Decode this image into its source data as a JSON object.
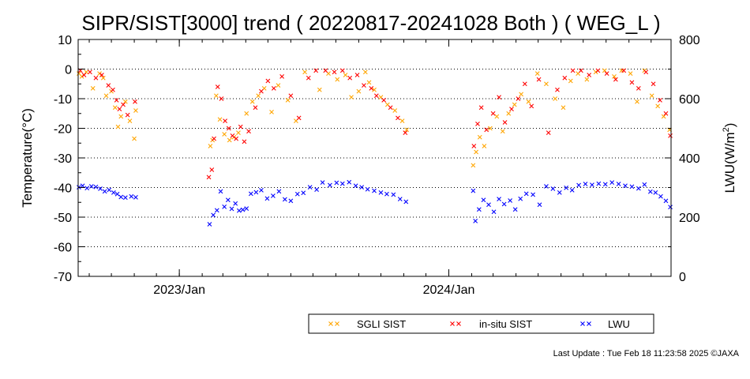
{
  "chart_data": {
    "type": "scatter",
    "title": "SIPR/SIST[3000] trend ( 20220817-20241028 Both ) ( WEG_L )",
    "date_range": [
      "2022-08-17",
      "2024-10-28"
    ],
    "ylabel_left": "Temperature(°C)",
    "ylabel_right_main": "LWU(W/m",
    "ylabel_right_sup": "2",
    "ylabel_right_close": ")",
    "ylim_left": [
      -70,
      10
    ],
    "ylim_right": [
      0,
      800
    ],
    "yticks_left": [
      "10",
      "0",
      "-10",
      "-20",
      "-30",
      "-40",
      "-50",
      "-60",
      "-70"
    ],
    "yticks_right": [
      "800",
      "600",
      "400",
      "200",
      "0"
    ],
    "xtick_labels": [
      {
        "date": "2023-01-01",
        "label": "2023/Jan"
      },
      {
        "date": "2024-01-01",
        "label": "2024/Jan"
      }
    ],
    "grid": "horizontal dotted",
    "legend_position": "bottom-right",
    "series": [
      {
        "name": "SGLI SIST",
        "color": "#ffa500",
        "marker": "x",
        "axis": "left",
        "points": [
          [
            "2022-08-18",
            -1.5
          ],
          [
            "2022-08-22",
            -2.5
          ],
          [
            "2022-08-28",
            -1.0
          ],
          [
            "2022-09-06",
            -6.5
          ],
          [
            "2022-09-15",
            -1.5
          ],
          [
            "2022-09-20",
            -3.0
          ],
          [
            "2022-09-24",
            -9.0
          ],
          [
            "2022-10-01",
            -7.5
          ],
          [
            "2022-10-06",
            -13.0
          ],
          [
            "2022-10-10",
            -19.5
          ],
          [
            "2022-10-14",
            -16.0
          ],
          [
            "2022-10-20",
            -11.0
          ],
          [
            "2022-10-26",
            -17.5
          ],
          [
            "2022-11-01",
            -23.5
          ],
          [
            "2022-11-03",
            -14.0
          ],
          [
            "2023-02-12",
            -26.0
          ],
          [
            "2023-02-15",
            -24.0
          ],
          [
            "2023-02-20",
            -9.0
          ],
          [
            "2023-02-25",
            -17.0
          ],
          [
            "2023-03-03",
            -22.0
          ],
          [
            "2023-03-10",
            -24.0
          ],
          [
            "2023-03-16",
            -23.0
          ],
          [
            "2023-03-22",
            -21.5
          ],
          [
            "2023-04-02",
            -15.0
          ],
          [
            "2023-04-10",
            -11.0
          ],
          [
            "2023-04-18",
            -9.0
          ],
          [
            "2023-04-26",
            -6.5
          ],
          [
            "2023-05-06",
            -14.5
          ],
          [
            "2023-05-15",
            -5.5
          ],
          [
            "2023-05-28",
            -10.5
          ],
          [
            "2023-06-08",
            -17.5
          ],
          [
            "2023-06-20",
            -1.0
          ],
          [
            "2023-07-10",
            -7.0
          ],
          [
            "2023-07-22",
            -1.5
          ],
          [
            "2023-08-03",
            -3.5
          ],
          [
            "2023-08-14",
            -2.0
          ],
          [
            "2023-08-22",
            -9.5
          ],
          [
            "2023-09-01",
            -7.5
          ],
          [
            "2023-09-10",
            -1.0
          ],
          [
            "2023-09-15",
            -4.5
          ],
          [
            "2023-09-22",
            -7.0
          ],
          [
            "2023-10-01",
            -9.5
          ],
          [
            "2023-10-10",
            -12.0
          ],
          [
            "2023-10-20",
            -14.0
          ],
          [
            "2023-10-30",
            -17.5
          ],
          [
            "2023-11-05",
            -20.5
          ],
          [
            "2024-02-03",
            -32.5
          ],
          [
            "2024-02-07",
            -28.0
          ],
          [
            "2024-02-12",
            -23.0
          ],
          [
            "2024-02-18",
            -26.0
          ],
          [
            "2024-02-26",
            -20.0
          ],
          [
            "2024-03-06",
            -16.0
          ],
          [
            "2024-03-14",
            -21.0
          ],
          [
            "2024-03-22",
            -15.0
          ],
          [
            "2024-03-30",
            -12.0
          ],
          [
            "2024-04-08",
            -8.5
          ],
          [
            "2024-04-18",
            -11.0
          ],
          [
            "2024-04-30",
            -1.5
          ],
          [
            "2024-05-12",
            -5.0
          ],
          [
            "2024-05-24",
            -10.0
          ],
          [
            "2024-06-04",
            -13.0
          ],
          [
            "2024-06-14",
            -4.0
          ],
          [
            "2024-06-24",
            -1.5
          ],
          [
            "2024-07-06",
            -3.5
          ],
          [
            "2024-07-18",
            -1.0
          ],
          [
            "2024-07-30",
            -0.5
          ],
          [
            "2024-08-12",
            -2.5
          ],
          [
            "2024-08-22",
            -0.5
          ],
          [
            "2024-09-03",
            -1.5
          ],
          [
            "2024-09-12",
            -11.0
          ],
          [
            "2024-09-22",
            -0.5
          ],
          [
            "2024-10-02",
            -9.0
          ],
          [
            "2024-10-10",
            -12.5
          ],
          [
            "2024-10-18",
            -16.0
          ],
          [
            "2024-10-26",
            -20.5
          ]
        ]
      },
      {
        "name": "in-situ SIST",
        "color": "#ff0000",
        "marker": "x",
        "axis": "left",
        "points": [
          [
            "2022-08-20",
            -0.5
          ],
          [
            "2022-08-25",
            -2.0
          ],
          [
            "2022-09-02",
            -1.0
          ],
          [
            "2022-09-10",
            -3.0
          ],
          [
            "2022-09-18",
            -2.0
          ],
          [
            "2022-09-27",
            -5.5
          ],
          [
            "2022-10-03",
            -7.0
          ],
          [
            "2022-10-08",
            -10.5
          ],
          [
            "2022-10-12",
            -13.5
          ],
          [
            "2022-10-17",
            -12.0
          ],
          [
            "2022-10-23",
            -15.5
          ],
          [
            "2022-11-02",
            -11.0
          ],
          [
            "2023-02-10",
            -36.5
          ],
          [
            "2023-02-14",
            -34.0
          ],
          [
            "2023-02-17",
            -23.5
          ],
          [
            "2023-02-22",
            -6.0
          ],
          [
            "2023-02-27",
            -10.0
          ],
          [
            "2023-03-04",
            -17.5
          ],
          [
            "2023-03-09",
            -20.0
          ],
          [
            "2023-03-14",
            -22.5
          ],
          [
            "2023-03-19",
            -23.5
          ],
          [
            "2023-03-25",
            -19.5
          ],
          [
            "2023-03-30",
            -24.5
          ],
          [
            "2023-04-05",
            -21.0
          ],
          [
            "2023-04-14",
            -13.0
          ],
          [
            "2023-04-22",
            -7.5
          ],
          [
            "2023-05-01",
            -4.0
          ],
          [
            "2023-05-09",
            -6.5
          ],
          [
            "2023-05-20",
            -2.5
          ],
          [
            "2023-06-01",
            -9.0
          ],
          [
            "2023-06-12",
            -16.5
          ],
          [
            "2023-06-25",
            -3.0
          ],
          [
            "2023-07-05",
            -0.5
          ],
          [
            "2023-07-18",
            -0.5
          ],
          [
            "2023-07-30",
            -1.0
          ],
          [
            "2023-08-10",
            -0.5
          ],
          [
            "2023-08-20",
            -3.0
          ],
          [
            "2023-08-30",
            -2.0
          ],
          [
            "2023-09-08",
            -5.5
          ],
          [
            "2023-09-18",
            -6.5
          ],
          [
            "2023-09-25",
            -9.0
          ],
          [
            "2023-10-05",
            -10.5
          ],
          [
            "2023-10-14",
            -13.0
          ],
          [
            "2023-10-24",
            -16.5
          ],
          [
            "2023-11-03",
            -21.5
          ],
          [
            "2024-02-04",
            -26.0
          ],
          [
            "2024-02-09",
            -18.5
          ],
          [
            "2024-02-14",
            -13.0
          ],
          [
            "2024-02-21",
            -20.5
          ],
          [
            "2024-03-01",
            -15.0
          ],
          [
            "2024-03-09",
            -9.5
          ],
          [
            "2024-03-17",
            -18.0
          ],
          [
            "2024-03-26",
            -13.5
          ],
          [
            "2024-04-04",
            -10.0
          ],
          [
            "2024-04-13",
            -5.0
          ],
          [
            "2024-04-22",
            -12.5
          ],
          [
            "2024-05-02",
            -3.5
          ],
          [
            "2024-05-15",
            -21.5
          ],
          [
            "2024-05-27",
            -7.0
          ],
          [
            "2024-06-06",
            -3.0
          ],
          [
            "2024-06-17",
            -0.5
          ],
          [
            "2024-06-28",
            -0.5
          ],
          [
            "2024-07-09",
            -2.0
          ],
          [
            "2024-07-21",
            -0.5
          ],
          [
            "2024-08-02",
            -1.5
          ],
          [
            "2024-08-14",
            -3.5
          ],
          [
            "2024-08-25",
            -0.5
          ],
          [
            "2024-09-05",
            -4.5
          ],
          [
            "2024-09-14",
            -6.5
          ],
          [
            "2024-09-24",
            -1.0
          ],
          [
            "2024-10-04",
            -5.0
          ],
          [
            "2024-10-13",
            -10.5
          ],
          [
            "2024-10-21",
            -15.0
          ],
          [
            "2024-10-27",
            -22.5
          ]
        ]
      },
      {
        "name": "LWU",
        "color": "#0000ff",
        "marker": "x",
        "axis": "right",
        "points": [
          [
            "2022-08-18",
            301
          ],
          [
            "2022-08-23",
            306
          ],
          [
            "2022-08-29",
            298
          ],
          [
            "2022-09-04",
            304
          ],
          [
            "2022-09-10",
            302
          ],
          [
            "2022-09-16",
            296
          ],
          [
            "2022-09-22",
            287
          ],
          [
            "2022-09-28",
            292
          ],
          [
            "2022-10-04",
            283
          ],
          [
            "2022-10-09",
            278
          ],
          [
            "2022-10-14",
            268
          ],
          [
            "2022-10-20",
            266
          ],
          [
            "2022-10-28",
            270
          ],
          [
            "2022-11-03",
            267
          ],
          [
            "2023-02-11",
            176
          ],
          [
            "2023-02-16",
            207
          ],
          [
            "2023-02-21",
            223
          ],
          [
            "2023-02-26",
            287
          ],
          [
            "2023-03-03",
            235
          ],
          [
            "2023-03-08",
            258
          ],
          [
            "2023-03-13",
            228
          ],
          [
            "2023-03-18",
            246
          ],
          [
            "2023-03-23",
            222
          ],
          [
            "2023-03-28",
            225
          ],
          [
            "2023-04-02",
            229
          ],
          [
            "2023-04-08",
            279
          ],
          [
            "2023-04-15",
            284
          ],
          [
            "2023-04-22",
            291
          ],
          [
            "2023-04-30",
            263
          ],
          [
            "2023-05-08",
            272
          ],
          [
            "2023-05-16",
            287
          ],
          [
            "2023-05-24",
            260
          ],
          [
            "2023-06-01",
            255
          ],
          [
            "2023-06-10",
            278
          ],
          [
            "2023-06-18",
            282
          ],
          [
            "2023-06-27",
            301
          ],
          [
            "2023-07-06",
            293
          ],
          [
            "2023-07-14",
            317
          ],
          [
            "2023-07-24",
            308
          ],
          [
            "2023-08-02",
            316
          ],
          [
            "2023-08-10",
            313
          ],
          [
            "2023-08-19",
            318
          ],
          [
            "2023-08-28",
            306
          ],
          [
            "2023-09-05",
            301
          ],
          [
            "2023-09-13",
            294
          ],
          [
            "2023-09-22",
            289
          ],
          [
            "2023-10-01",
            283
          ],
          [
            "2023-10-09",
            278
          ],
          [
            "2023-10-18",
            276
          ],
          [
            "2023-10-27",
            261
          ],
          [
            "2023-11-04",
            252
          ],
          [
            "2024-02-03",
            289
          ],
          [
            "2024-02-06",
            187
          ],
          [
            "2024-02-11",
            226
          ],
          [
            "2024-02-17",
            258
          ],
          [
            "2024-02-24",
            242
          ],
          [
            "2024-03-02",
            218
          ],
          [
            "2024-03-09",
            261
          ],
          [
            "2024-03-16",
            244
          ],
          [
            "2024-03-24",
            256
          ],
          [
            "2024-03-31",
            226
          ],
          [
            "2024-04-07",
            262
          ],
          [
            "2024-04-15",
            279
          ],
          [
            "2024-04-24",
            276
          ],
          [
            "2024-05-03",
            242
          ],
          [
            "2024-05-12",
            304
          ],
          [
            "2024-05-21",
            296
          ],
          [
            "2024-05-30",
            283
          ],
          [
            "2024-06-08",
            299
          ],
          [
            "2024-06-16",
            291
          ],
          [
            "2024-06-25",
            308
          ],
          [
            "2024-07-04",
            312
          ],
          [
            "2024-07-13",
            309
          ],
          [
            "2024-07-22",
            313
          ],
          [
            "2024-07-31",
            311
          ],
          [
            "2024-08-09",
            317
          ],
          [
            "2024-08-18",
            312
          ],
          [
            "2024-08-27",
            306
          ],
          [
            "2024-09-05",
            303
          ],
          [
            "2024-09-14",
            297
          ],
          [
            "2024-09-22",
            310
          ],
          [
            "2024-09-30",
            286
          ],
          [
            "2024-10-07",
            283
          ],
          [
            "2024-10-14",
            270
          ],
          [
            "2024-10-21",
            255
          ],
          [
            "2024-10-27",
            234
          ]
        ]
      }
    ]
  },
  "legend": {
    "items": [
      {
        "label": "SGLI SIST",
        "color": "#ffa500"
      },
      {
        "label": "in-situ SIST",
        "color": "#ff0000"
      },
      {
        "label": "LWU",
        "color": "#0000ff"
      }
    ]
  },
  "footer": {
    "last_update": "Last Update : Tue Feb 18 11:23:58 2025  ©JAXA"
  }
}
